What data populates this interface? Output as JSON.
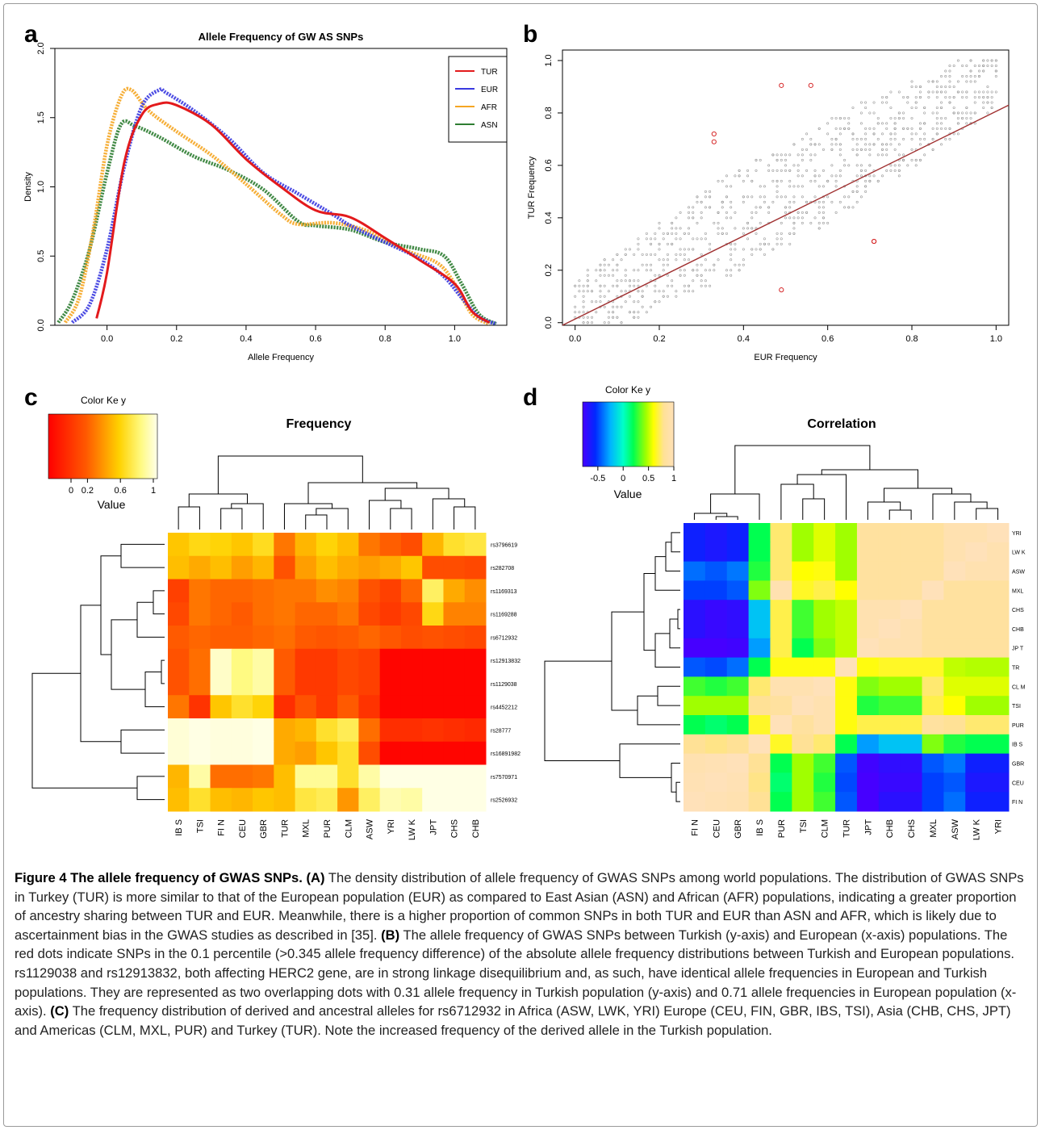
{
  "panels": {
    "a": "a",
    "b": "b",
    "c": "c",
    "d": "d"
  },
  "chart_data": [
    {
      "id": "a",
      "type": "line",
      "title": "Allele Frequency of GW AS SNPs",
      "xlabel": "Allele Frequency",
      "ylabel": "Density",
      "xlim": [
        -0.15,
        1.15
      ],
      "ylim": [
        0,
        2.0
      ],
      "xticks": [
        "0.0",
        "0.2",
        "0.4",
        "0.6",
        "0.8",
        "1.0"
      ],
      "yticks": [
        "0.0",
        "0.5",
        "1.0",
        "1.5",
        "2.0"
      ],
      "legend": "top-right",
      "series": [
        {
          "name": "TUR",
          "color": "#e31a1c",
          "style": "line",
          "x": [
            -0.03,
            0.0,
            0.05,
            0.1,
            0.15,
            0.2,
            0.3,
            0.4,
            0.5,
            0.6,
            0.7,
            0.8,
            0.9,
            1.0,
            1.05,
            1.1
          ],
          "y": [
            0.05,
            0.38,
            1.18,
            1.52,
            1.6,
            1.59,
            1.45,
            1.2,
            1.0,
            0.83,
            0.78,
            0.63,
            0.47,
            0.3,
            0.1,
            0.02
          ]
        },
        {
          "name": "EUR",
          "color": "#3a3ae0",
          "style": "points",
          "x": [
            -0.1,
            -0.05,
            0.0,
            0.05,
            0.1,
            0.15,
            0.17,
            0.25,
            0.35,
            0.45,
            0.55,
            0.65,
            0.7,
            0.8,
            0.9,
            0.97,
            1.02,
            1.07,
            1.12
          ],
          "y": [
            0.02,
            0.15,
            0.55,
            1.15,
            1.58,
            1.7,
            1.68,
            1.55,
            1.35,
            1.1,
            0.95,
            0.8,
            0.72,
            0.6,
            0.48,
            0.35,
            0.2,
            0.06,
            0.01
          ]
        },
        {
          "name": "AFR",
          "color": "#f5a623",
          "style": "points",
          "x": [
            -0.12,
            -0.08,
            -0.04,
            0.0,
            0.04,
            0.07,
            0.12,
            0.2,
            0.3,
            0.4,
            0.5,
            0.55,
            0.65,
            0.75,
            0.85,
            0.95,
            1.0,
            1.05,
            1.1
          ],
          "y": [
            0.02,
            0.2,
            0.68,
            1.3,
            1.65,
            1.7,
            1.55,
            1.4,
            1.23,
            1.02,
            0.8,
            0.73,
            0.74,
            0.68,
            0.55,
            0.45,
            0.3,
            0.08,
            0.01
          ]
        },
        {
          "name": "ASN",
          "color": "#2e7d32",
          "style": "points",
          "x": [
            -0.14,
            -0.1,
            -0.05,
            0.0,
            0.04,
            0.08,
            0.15,
            0.25,
            0.35,
            0.45,
            0.55,
            0.6,
            0.7,
            0.8,
            0.9,
            0.97,
            1.02,
            1.07,
            1.12
          ],
          "y": [
            0.02,
            0.18,
            0.55,
            1.1,
            1.45,
            1.44,
            1.36,
            1.22,
            1.12,
            0.98,
            0.75,
            0.72,
            0.69,
            0.6,
            0.55,
            0.5,
            0.3,
            0.08,
            0.01
          ]
        }
      ]
    },
    {
      "id": "b",
      "type": "scatter",
      "xlabel": "EUR Frequency",
      "ylabel": "TUR  Frequency",
      "xlim": [
        -0.03,
        1.03
      ],
      "ylim": [
        -0.01,
        1.04
      ],
      "xticks": [
        "0.0",
        "0.2",
        "0.4",
        "0.6",
        "0.8",
        "1.0"
      ],
      "yticks": [
        "0.0",
        "0.2",
        "0.4",
        "0.6",
        "0.8",
        "1.0"
      ],
      "grid": false,
      "background_points": "grey dense cloud along y = x, spread ~±0.2",
      "highlight_color": "#d62728",
      "highlight_points": [
        {
          "x": 0.49,
          "y": 0.905
        },
        {
          "x": 0.56,
          "y": 0.905
        },
        {
          "x": 0.33,
          "y": 0.72
        },
        {
          "x": 0.33,
          "y": 0.69
        },
        {
          "x": 0.71,
          "y": 0.31
        },
        {
          "x": 0.71,
          "y": 0.31
        },
        {
          "x": 0.49,
          "y": 0.125
        }
      ],
      "fit_line": {
        "color": "#a03030",
        "from": [
          -0.03,
          -0.01
        ],
        "to": [
          1.03,
          0.83
        ]
      }
    },
    {
      "id": "c",
      "type": "heatmap",
      "title": "Frequency",
      "key_title": "Color  Ke y",
      "key_label": "Value",
      "key_ticks": [
        "0",
        "0.2",
        "0.6",
        "1"
      ],
      "rows": [
        "rs3796619",
        "rs282708",
        "rs1169313",
        "rs1169288",
        "rs6712932",
        "rs12913832",
        "rs1129038",
        "rs4452212",
        "rs28777",
        "rs16891982",
        "rs7570971",
        "rs2526932"
      ],
      "columns": [
        "IB S",
        "TSI",
        "FI N",
        "CEU",
        "GBR",
        "TUR",
        "MXL",
        "PUR",
        "CLM",
        "ASW",
        "YRI",
        "LW K",
        "JPT",
        "CHS",
        "CHB"
      ],
      "values": [
        [
          0.62,
          0.68,
          0.66,
          0.62,
          0.7,
          0.42,
          0.58,
          0.66,
          0.6,
          0.42,
          0.36,
          0.3,
          0.58,
          0.72,
          0.75
        ],
        [
          0.6,
          0.55,
          0.6,
          0.52,
          0.58,
          0.32,
          0.52,
          0.6,
          0.55,
          0.52,
          0.55,
          0.62,
          0.3,
          0.3,
          0.28
        ],
        [
          0.25,
          0.42,
          0.38,
          0.38,
          0.4,
          0.42,
          0.42,
          0.48,
          0.45,
          0.32,
          0.25,
          0.38,
          0.8,
          0.55,
          0.48
        ],
        [
          0.28,
          0.42,
          0.38,
          0.35,
          0.4,
          0.42,
          0.38,
          0.38,
          0.42,
          0.28,
          0.22,
          0.28,
          0.68,
          0.45,
          0.45
        ],
        [
          0.35,
          0.38,
          0.36,
          0.36,
          0.38,
          0.4,
          0.35,
          0.33,
          0.35,
          0.38,
          0.34,
          0.3,
          0.32,
          0.3,
          0.28
        ],
        [
          0.32,
          0.4,
          0.95,
          0.85,
          0.9,
          0.35,
          0.22,
          0.22,
          0.28,
          0.25,
          0.02,
          0.02,
          0.02,
          0.02,
          0.02
        ],
        [
          0.32,
          0.4,
          0.95,
          0.85,
          0.9,
          0.35,
          0.22,
          0.22,
          0.28,
          0.25,
          0.02,
          0.02,
          0.02,
          0.02,
          0.02
        ],
        [
          0.42,
          0.2,
          0.62,
          0.72,
          0.66,
          0.18,
          0.32,
          0.22,
          0.35,
          0.2,
          0.02,
          0.02,
          0.02,
          0.02,
          0.02
        ],
        [
          0.97,
          0.99,
          0.98,
          0.98,
          0.99,
          0.55,
          0.58,
          0.72,
          0.78,
          0.4,
          0.18,
          0.18,
          0.2,
          0.18,
          0.16
        ],
        [
          0.97,
          0.99,
          0.98,
          0.98,
          0.99,
          0.55,
          0.52,
          0.62,
          0.72,
          0.3,
          0.02,
          0.02,
          0.02,
          0.02,
          0.02
        ],
        [
          0.58,
          0.9,
          0.4,
          0.4,
          0.42,
          0.6,
          0.88,
          0.88,
          0.72,
          0.9,
          0.99,
          0.99,
          0.99,
          0.99,
          0.99
        ],
        [
          0.6,
          0.72,
          0.6,
          0.58,
          0.62,
          0.6,
          0.75,
          0.78,
          0.5,
          0.8,
          0.92,
          0.9,
          0.99,
          0.99,
          0.99
        ]
      ]
    },
    {
      "id": "d",
      "type": "heatmap",
      "title": "Correlation",
      "key_title": "Color  Ke y",
      "key_label": "Value",
      "key_ticks": [
        "-0.5",
        "0",
        "0.5",
        "1"
      ],
      "rows": [
        "YRI",
        "LW K",
        "ASW",
        "MXL",
        "CHS",
        "CHB",
        "JP T",
        "TR",
        "CL M",
        "TSI",
        "PUR",
        "IB S",
        "GBR",
        "CEU",
        "FI N"
      ],
      "columns": [
        "FI N",
        "CEU",
        "GBR",
        "IB S",
        "PUR",
        "TSI",
        "CLM",
        "TUR",
        "JPT",
        "CHB",
        "CHS",
        "MXL",
        "ASW",
        "LW K",
        "YRI"
      ],
      "values": [
        [
          -0.6,
          -0.65,
          -0.6,
          0.2,
          0.75,
          0.45,
          0.55,
          0.45,
          0.85,
          0.85,
          0.85,
          0.85,
          0.95,
          0.95,
          1.0
        ],
        [
          -0.6,
          -0.65,
          -0.6,
          0.2,
          0.75,
          0.45,
          0.55,
          0.45,
          0.85,
          0.85,
          0.85,
          0.85,
          0.95,
          1.0,
          0.95
        ],
        [
          -0.4,
          -0.45,
          -0.38,
          0.25,
          0.75,
          0.6,
          0.62,
          0.45,
          0.85,
          0.85,
          0.85,
          0.85,
          1.0,
          0.95,
          0.95
        ],
        [
          -0.5,
          -0.5,
          -0.45,
          0.4,
          0.95,
          0.65,
          0.7,
          0.6,
          0.85,
          0.85,
          0.85,
          1.0,
          0.85,
          0.85,
          0.85
        ],
        [
          -0.7,
          -0.75,
          -0.72,
          -0.2,
          0.7,
          0.3,
          0.45,
          0.5,
          0.95,
          0.95,
          1.0,
          0.85,
          0.85,
          0.85,
          0.85
        ],
        [
          -0.7,
          -0.75,
          -0.72,
          -0.2,
          0.7,
          0.3,
          0.45,
          0.5,
          0.95,
          1.0,
          0.95,
          0.85,
          0.85,
          0.85,
          0.85
        ],
        [
          -0.8,
          -0.82,
          -0.78,
          -0.3,
          0.7,
          0.2,
          0.4,
          0.5,
          1.0,
          0.95,
          0.95,
          0.85,
          0.85,
          0.85,
          0.85
        ],
        [
          -0.45,
          -0.48,
          -0.4,
          0.2,
          0.62,
          0.62,
          0.62,
          1.0,
          0.62,
          0.65,
          0.65,
          0.65,
          0.5,
          0.48,
          0.48
        ],
        [
          0.3,
          0.25,
          0.3,
          0.75,
          0.95,
          0.95,
          1.0,
          0.62,
          0.4,
          0.45,
          0.45,
          0.75,
          0.55,
          0.55,
          0.55
        ],
        [
          0.45,
          0.45,
          0.45,
          0.8,
          0.85,
          1.0,
          0.95,
          0.62,
          0.25,
          0.3,
          0.3,
          0.7,
          0.6,
          0.45,
          0.45
        ],
        [
          0.2,
          0.15,
          0.2,
          0.65,
          1.0,
          0.85,
          0.95,
          0.62,
          0.7,
          0.7,
          0.7,
          0.85,
          0.8,
          0.75,
          0.75
        ],
        [
          0.8,
          0.78,
          0.8,
          1.0,
          0.65,
          0.8,
          0.75,
          0.2,
          -0.3,
          -0.2,
          -0.2,
          0.4,
          0.25,
          0.2,
          0.2
        ],
        [
          0.95,
          0.97,
          1.0,
          0.8,
          0.2,
          0.45,
          0.3,
          -0.45,
          -0.78,
          -0.72,
          -0.72,
          -0.45,
          -0.38,
          -0.6,
          -0.6
        ],
        [
          0.97,
          1.0,
          0.97,
          0.78,
          0.15,
          0.45,
          0.25,
          -0.48,
          -0.82,
          -0.75,
          -0.75,
          -0.5,
          -0.45,
          -0.65,
          -0.65
        ],
        [
          1.0,
          0.97,
          0.95,
          0.8,
          0.2,
          0.45,
          0.3,
          -0.45,
          -0.8,
          -0.7,
          -0.7,
          -0.5,
          -0.4,
          -0.6,
          -0.6
        ]
      ]
    }
  ],
  "caption": {
    "title": "Figure 4 The allele frequency of GWAS SNPs.",
    "label_a": "(A)",
    "text_a": " The density distribution of allele frequency of GWAS SNPs among world populations. The distribution of GWAS SNPs in Turkey (TUR) is more similar to that of the European population (EUR) as compared to East Asian (ASN) and African (AFR) populations, indicating a greater proportion of ancestry sharing between TUR and EUR. Meanwhile, there is a higher proportion of common SNPs in both TUR and EUR than ASN and AFR, which is likely due to ascertainment bias in the GWAS studies as described in [35]. ",
    "label_b": "(B)",
    "text_b": " The allele frequency of GWAS SNPs between Turkish (y-axis) and European (x-axis) populations. The red dots indicate SNPs in the 0.1 percentile (>0.345 allele frequency difference) of the absolute allele frequency distributions between Turkish and European populations. rs1129038 and rs12913832, both affecting HERC2 gene, are in strong linkage disequilibrium and, as such, have identical allele frequencies in European and Turkish populations. They are represented as two overlapping dots with 0.31 allele frequency in Turkish population (y-axis) and 0.71 allele frequencies in European population (x-axis). ",
    "label_c": "(C)",
    "text_c": " The frequency distribution of derived and ancestral alleles for rs6712932 in Africa (ASW, LWK, YRI) Europe (CEU, FIN, GBR, IBS, TSI), Asia (CHB, CHS, JPT) and Americas (CLM, MXL, PUR) and Turkey (TUR). Note the increased frequency of the derived allele in the Turkish population."
  }
}
